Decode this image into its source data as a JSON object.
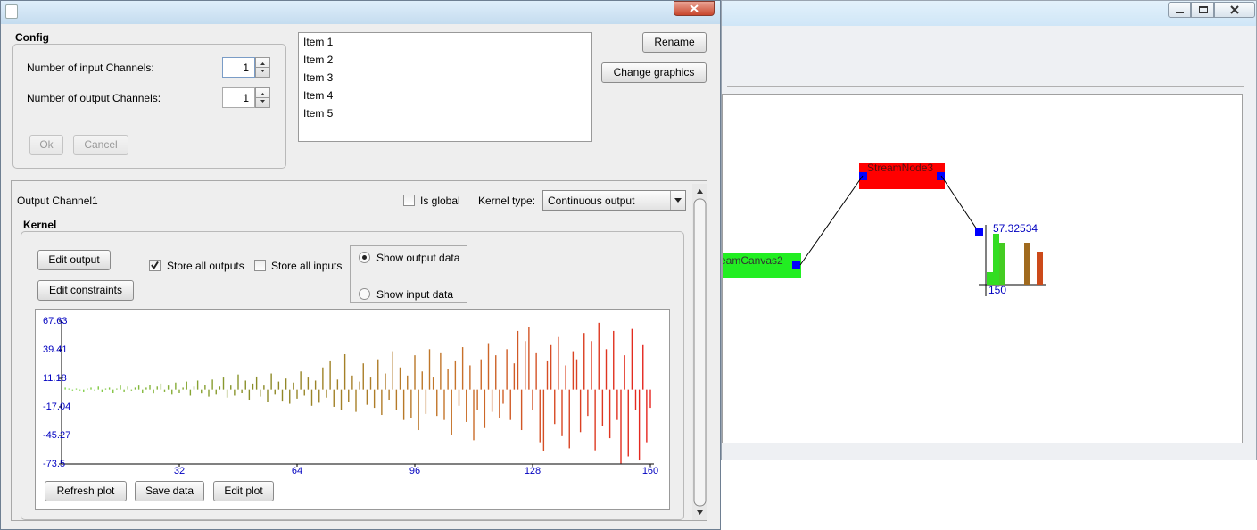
{
  "config": {
    "title": "Config",
    "input_label": "Number of input Channels:",
    "input_value": 1,
    "output_label": "Number of output Channels:",
    "output_value": 1,
    "ok": "Ok",
    "cancel": "Cancel"
  },
  "list": {
    "items": [
      "Item 1",
      "Item 2",
      "Item 3",
      "Item 4",
      "Item 5"
    ]
  },
  "buttons": {
    "rename": "Rename",
    "change_graphics": "Change graphics"
  },
  "channel": {
    "title": "Output Channel1",
    "is_global": "Is global",
    "is_global_checked": false,
    "kernel_type_label": "Kernel type:",
    "kernel_type": "Continuous output"
  },
  "kernel": {
    "title": "Kernel",
    "edit_output": "Edit output",
    "edit_constraints": "Edit constraints",
    "store_all_outputs": "Store all outputs",
    "store_all_outputs_checked": true,
    "store_all_inputs": "Store all inputs",
    "store_all_inputs_checked": false,
    "show_output_data": "Show output data",
    "show_input_data": "Show input data",
    "selected": "show_output_data",
    "refresh_plot": "Refresh plot",
    "save_data": "Save data",
    "edit_plot": "Edit plot"
  },
  "chart_data": {
    "type": "bar",
    "x": [
      1,
      2,
      3,
      4,
      5,
      6,
      7,
      8,
      9,
      10,
      11,
      12,
      13,
      14,
      15,
      16,
      17,
      18,
      19,
      20,
      21,
      22,
      23,
      24,
      25,
      26,
      27,
      28,
      29,
      30,
      31,
      32,
      33,
      34,
      35,
      36,
      37,
      38,
      39,
      40,
      41,
      42,
      43,
      44,
      45,
      46,
      47,
      48,
      49,
      50,
      51,
      52,
      53,
      54,
      55,
      56,
      57,
      58,
      59,
      60,
      61,
      62,
      63,
      64,
      65,
      66,
      67,
      68,
      69,
      70,
      71,
      72,
      73,
      74,
      75,
      76,
      77,
      78,
      79,
      80,
      81,
      82,
      83,
      84,
      85,
      86,
      87,
      88,
      89,
      90,
      91,
      92,
      93,
      94,
      95,
      96,
      97,
      98,
      99,
      100,
      101,
      102,
      103,
      104,
      105,
      106,
      107,
      108,
      109,
      110,
      111,
      112,
      113,
      114,
      115,
      116,
      117,
      118,
      119,
      120,
      121,
      122,
      123,
      124,
      125,
      126,
      127,
      128,
      129,
      130,
      131,
      132,
      133,
      134,
      135,
      136,
      137,
      138,
      139,
      140,
      141,
      142,
      143,
      144,
      145,
      146,
      147,
      148,
      149,
      150,
      151,
      152,
      153,
      154,
      155,
      156,
      157,
      158,
      159,
      160
    ],
    "values": [
      2,
      1,
      -1,
      1,
      0,
      -2,
      1,
      2,
      -1,
      3,
      -2,
      1,
      2,
      -3,
      1,
      4,
      -2,
      3,
      -1,
      2,
      4,
      -3,
      2,
      5,
      -4,
      3,
      6,
      -2,
      4,
      -5,
      7,
      -3,
      2,
      8,
      -6,
      3,
      9,
      -4,
      5,
      -7,
      10,
      -5,
      3,
      12,
      -8,
      4,
      -6,
      15,
      -3,
      9,
      -10,
      6,
      13,
      -7,
      4,
      -12,
      16,
      -5,
      8,
      -11,
      11,
      -14,
      7,
      -9,
      18,
      -6,
      12,
      -16,
      9,
      -13,
      22,
      -8,
      28,
      -17,
      10,
      -20,
      35,
      -12,
      14,
      -22,
      8,
      26,
      -15,
      12,
      -18,
      30,
      -25,
      16,
      -10,
      38,
      -20,
      22,
      -30,
      14,
      -28,
      34,
      -40,
      18,
      -24,
      40,
      12,
      -26,
      36,
      -30,
      20,
      -45,
      28,
      -16,
      42,
      -32,
      24,
      -50,
      -20,
      30,
      -38,
      46,
      -22,
      34,
      -28,
      -14,
      40,
      -30,
      26,
      58,
      -40,
      48,
      62,
      -20,
      36,
      -52,
      -61,
      28,
      44,
      -34,
      52,
      -46,
      24,
      -58,
      38,
      30,
      -42,
      56,
      -26,
      48,
      -60,
      66,
      -36,
      40,
      -48,
      58,
      -30,
      -73,
      34,
      -66,
      60,
      -20,
      -70,
      44,
      -52,
      -18
    ],
    "gradient": [
      "#7fd64a",
      "#8a8a26",
      "#c7732a",
      "#e6231e"
    ],
    "xlim": [
      0,
      160
    ],
    "xticks": [
      32,
      64,
      96,
      128,
      160
    ],
    "ylim": [
      -73.5,
      67.63
    ],
    "yticks": [
      67.63,
      39.41,
      11.18,
      -17.04,
      -45.27,
      -73.5
    ]
  },
  "canvas": {
    "nodes": [
      {
        "label": "eamCanvas2"
      },
      {
        "label": "StreamNode3"
      }
    ],
    "preview": {
      "max_label": "57.32534",
      "x_label": "150"
    }
  }
}
